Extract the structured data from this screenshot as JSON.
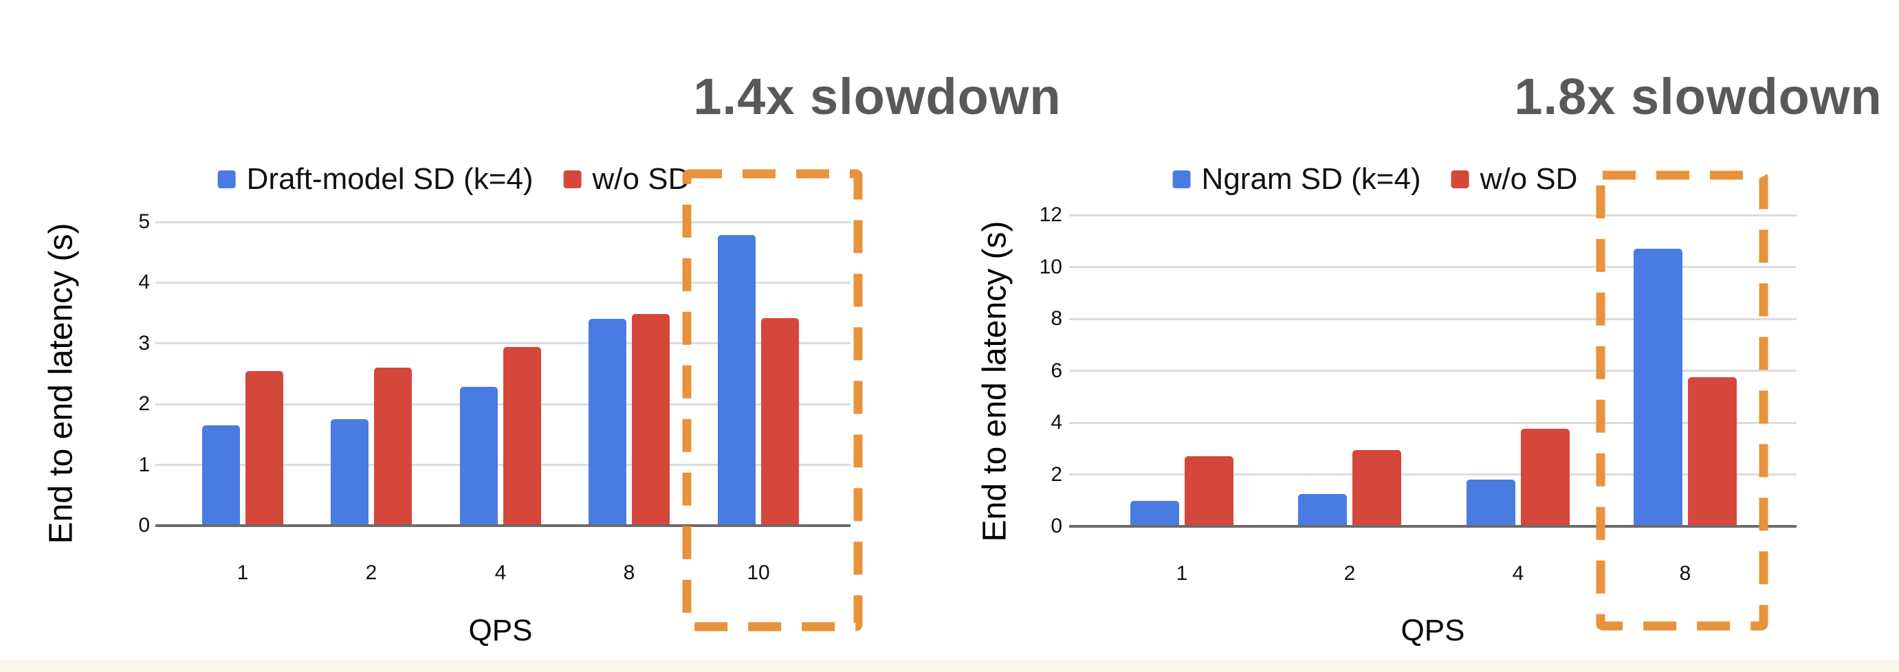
{
  "colors": {
    "series_blue": "#4A7BE3",
    "series_red": "#D5473B",
    "highlight_orange": "#E8923B",
    "annotation_gray": "#58595A",
    "gridline": "#DCDCDC",
    "axis_line": "#6B6B6B",
    "footer_strip": "#FAF7EC"
  },
  "chart_data": [
    {
      "type": "bar",
      "title": "",
      "annotation": "1.4x slowdown",
      "categories": [
        "1",
        "2",
        "4",
        "8",
        "10"
      ],
      "series": [
        {
          "name": "Draft-model SD (k=4)",
          "color_key": "series_blue",
          "values": [
            1.65,
            1.75,
            2.28,
            3.4,
            4.78
          ]
        },
        {
          "name": "w/o SD",
          "color_key": "series_red",
          "values": [
            2.55,
            2.6,
            2.94,
            3.48,
            3.42
          ]
        }
      ],
      "xlabel": "QPS",
      "ylabel": "End to end latency (s)",
      "ylim": [
        0,
        5
      ],
      "ytick_step": 1,
      "grid": true,
      "legend_position": "top",
      "highlight_category": "10"
    },
    {
      "type": "bar",
      "title": "",
      "annotation": "1.8x slowdown",
      "categories": [
        "1",
        "2",
        "4",
        "8"
      ],
      "series": [
        {
          "name": "Ngram SD (k=4)",
          "color_key": "series_blue",
          "values": [
            0.97,
            1.25,
            1.8,
            10.7
          ]
        },
        {
          "name": "w/o SD",
          "color_key": "series_red",
          "values": [
            2.7,
            2.94,
            3.77,
            5.75
          ]
        }
      ],
      "xlabel": "QPS",
      "ylabel": "End to end latency (s)",
      "ylim": [
        0,
        12
      ],
      "ytick_step": 2,
      "grid": true,
      "legend_position": "top",
      "highlight_category": "8"
    }
  ]
}
